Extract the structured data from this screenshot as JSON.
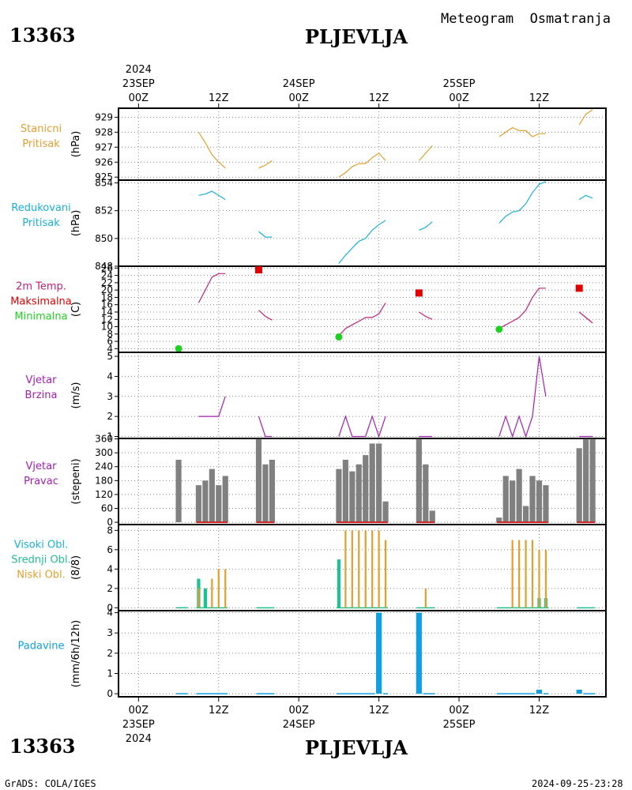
{
  "header": {
    "station_id": "13363",
    "station_name": "PLJEVLJA",
    "meteogram_title": "Meteogram  Osmatranja"
  },
  "footer": {
    "station_id": "13363",
    "station_name": "PLJEVLJA",
    "credit": "GrADS: COLA/IGES",
    "timestamp": "2024-09-25-23:28"
  },
  "colors": {
    "pressure": "#e0a030",
    "reduced": "#1ab0d8",
    "temp": "#c0207a",
    "max": "#e00000",
    "min": "#20d020",
    "wind": "#a020b0",
    "dir_bar": "#808080",
    "calm": "#d02020",
    "high_cloud": "#1ab0d8",
    "mid_cloud": "#20c090",
    "low_cloud": "#e0a030",
    "precip": "#10a0e0"
  },
  "time_axis": {
    "top": {
      "year": "2024",
      "labels": [
        {
          "t": 0,
          "day": "23SEP",
          "hour": "00Z"
        },
        {
          "t": 12,
          "hour": "12Z"
        },
        {
          "t": 24,
          "day": "24SEP",
          "hour": "00Z"
        },
        {
          "t": 36,
          "hour": "12Z"
        },
        {
          "t": 48,
          "day": "25SEP",
          "hour": "00Z"
        },
        {
          "t": 60,
          "hour": "12Z"
        }
      ]
    },
    "bottom": {
      "year": "2024",
      "labels": [
        {
          "t": 0,
          "day": "23SEP",
          "hour": "00Z"
        },
        {
          "t": 12,
          "hour": "12Z"
        },
        {
          "t": 24,
          "day": "24SEP",
          "hour": "00Z"
        },
        {
          "t": 36,
          "hour": "12Z"
        },
        {
          "t": 48,
          "day": "25SEP",
          "hour": "00Z"
        },
        {
          "t": 60,
          "hour": "12Z"
        }
      ]
    }
  },
  "chart_data": [
    {
      "type": "line",
      "id": "station_pressure",
      "label_lines": [
        "Stanicni",
        "Pritisak"
      ],
      "ylabel": "(hPa)",
      "ylim": [
        924.8,
        929.6
      ],
      "yticks": [
        925,
        926,
        927,
        928,
        929
      ],
      "x_unit": "hours since 23SEP 00Z",
      "segments": [
        [
          [
            9,
            928.0
          ],
          [
            10,
            927.3
          ],
          [
            11,
            926.5
          ],
          [
            12,
            926.0
          ],
          [
            13,
            925.6
          ]
        ],
        [
          [
            18,
            925.6
          ],
          [
            19,
            925.8
          ],
          [
            20,
            926.1
          ]
        ],
        [
          [
            30,
            925.0
          ],
          [
            31,
            925.3
          ],
          [
            32,
            925.7
          ],
          [
            33,
            925.9
          ],
          [
            34,
            925.9
          ],
          [
            35,
            926.3
          ],
          [
            36,
            926.6
          ],
          [
            37,
            926.1
          ]
        ],
        [
          [
            42,
            926.1
          ],
          [
            43,
            926.6
          ],
          [
            44,
            927.1
          ]
        ],
        [
          [
            54,
            927.7
          ],
          [
            55,
            928.0
          ],
          [
            56,
            928.3
          ],
          [
            57,
            928.1
          ],
          [
            58,
            928.1
          ],
          [
            59,
            927.7
          ],
          [
            60,
            927.9
          ],
          [
            61,
            927.9
          ]
        ],
        [
          [
            66,
            928.5
          ],
          [
            67,
            929.2
          ],
          [
            68,
            929.5
          ]
        ]
      ]
    },
    {
      "type": "line",
      "id": "reduced_pressure",
      "label_lines": [
        "Redukovani",
        "Pritisak"
      ],
      "ylabel": "(hPa)",
      "ylim": [
        848,
        854.2
      ],
      "yticks": [
        848,
        850,
        852,
        854
      ],
      "segments": [
        [
          [
            9,
            853.1
          ],
          [
            10,
            853.2
          ],
          [
            11,
            853.4
          ],
          [
            12,
            853.1
          ],
          [
            13,
            852.8
          ]
        ],
        [
          [
            18,
            850.5
          ],
          [
            19,
            850.1
          ],
          [
            20,
            850.1
          ]
        ],
        [
          [
            30,
            848.2
          ],
          [
            31,
            848.8
          ],
          [
            32,
            849.3
          ],
          [
            33,
            849.8
          ],
          [
            34,
            850.0
          ],
          [
            35,
            850.6
          ],
          [
            36,
            851.0
          ],
          [
            37,
            851.3
          ]
        ],
        [
          [
            42,
            850.6
          ],
          [
            43,
            850.8
          ],
          [
            44,
            851.2
          ]
        ],
        [
          [
            54,
            851.1
          ],
          [
            55,
            851.6
          ],
          [
            56,
            851.9
          ],
          [
            57,
            852.0
          ],
          [
            58,
            852.5
          ],
          [
            59,
            853.3
          ],
          [
            60,
            853.9
          ],
          [
            61,
            854.1
          ]
        ],
        [
          [
            66,
            852.8
          ],
          [
            67,
            853.1
          ],
          [
            68,
            852.9
          ]
        ]
      ]
    },
    {
      "type": "line",
      "id": "temperature",
      "label_lines": [
        "2m Temp.",
        "Maksimalna",
        "Minimalna"
      ],
      "ylabel": "(C)",
      "ylim": [
        3,
        26.5
      ],
      "yticks": [
        4,
        6,
        8,
        10,
        12,
        14,
        16,
        18,
        20,
        22,
        24,
        26
      ],
      "segments": [
        [
          [
            9,
            16.5
          ],
          [
            10,
            20.0
          ],
          [
            11,
            23.5
          ],
          [
            12,
            24.5
          ],
          [
            13,
            24.5
          ]
        ],
        [
          [
            18,
            14.5
          ],
          [
            19,
            12.8
          ],
          [
            20,
            11.8
          ]
        ],
        [
          [
            30,
            7.5
          ],
          [
            31,
            9.5
          ],
          [
            32,
            10.5
          ],
          [
            33,
            11.5
          ],
          [
            34,
            12.5
          ],
          [
            35,
            12.5
          ],
          [
            36,
            13.5
          ],
          [
            37,
            16.5
          ]
        ],
        [
          [
            42,
            14.0
          ],
          [
            43,
            12.8
          ],
          [
            44,
            12.0
          ]
        ],
        [
          [
            54,
            9.5
          ],
          [
            55,
            10.5
          ],
          [
            56,
            11.5
          ],
          [
            57,
            12.5
          ],
          [
            58,
            14.5
          ],
          [
            59,
            18.0
          ],
          [
            60,
            20.5
          ],
          [
            61,
            20.5
          ]
        ],
        [
          [
            66,
            14.0
          ],
          [
            67,
            12.5
          ],
          [
            68,
            11.0
          ]
        ]
      ],
      "max_points": [
        [
          18,
          25.5
        ],
        [
          42,
          19.2
        ],
        [
          66,
          20.5
        ]
      ],
      "min_points": [
        [
          6,
          4.0
        ],
        [
          30,
          7.2
        ],
        [
          54,
          9.3
        ]
      ]
    },
    {
      "type": "line",
      "id": "wind_speed",
      "label_lines": [
        "Vjetar",
        "Brzina"
      ],
      "ylabel": "(m/s)",
      "ylim": [
        0.9,
        5.2
      ],
      "yticks": [
        1,
        2,
        3,
        4,
        5
      ],
      "segments": [
        [
          [
            9,
            2
          ],
          [
            10,
            2
          ],
          [
            11,
            2
          ],
          [
            12,
            2
          ],
          [
            13,
            3
          ]
        ],
        [
          [
            18,
            2
          ],
          [
            19,
            1
          ],
          [
            20,
            1
          ]
        ],
        [
          [
            30,
            1
          ],
          [
            31,
            2
          ],
          [
            32,
            1
          ],
          [
            33,
            1
          ],
          [
            34,
            1
          ],
          [
            35,
            2
          ],
          [
            36,
            1
          ],
          [
            37,
            2
          ]
        ],
        [
          [
            42,
            1
          ],
          [
            43,
            1
          ],
          [
            44,
            1
          ]
        ],
        [
          [
            54,
            1
          ],
          [
            55,
            2
          ],
          [
            56,
            1
          ],
          [
            57,
            2
          ],
          [
            58,
            1
          ],
          [
            59,
            2
          ],
          [
            60,
            5
          ],
          [
            61,
            3
          ]
        ],
        [
          [
            66,
            1
          ],
          [
            67,
            1
          ],
          [
            68,
            1
          ]
        ]
      ]
    },
    {
      "type": "bar",
      "id": "wind_direction",
      "label_lines": [
        "Vjetar",
        "Pravac"
      ],
      "ylabel": "(stepeni)",
      "ylim": [
        -10,
        362
      ],
      "yticks": [
        0,
        60,
        120,
        180,
        240,
        300,
        360
      ],
      "bars": [
        [
          6,
          270
        ],
        [
          9,
          160
        ],
        [
          10,
          180
        ],
        [
          11,
          230
        ],
        [
          12,
          160
        ],
        [
          13,
          200
        ],
        [
          18,
          360
        ],
        [
          19,
          250
        ],
        [
          20,
          270
        ],
        [
          30,
          230
        ],
        [
          31,
          270
        ],
        [
          32,
          220
        ],
        [
          33,
          250
        ],
        [
          34,
          290
        ],
        [
          35,
          340
        ],
        [
          36,
          340
        ],
        [
          37,
          90
        ],
        [
          42,
          360
        ],
        [
          43,
          250
        ],
        [
          44,
          50
        ],
        [
          54,
          20
        ],
        [
          55,
          200
        ],
        [
          56,
          180
        ],
        [
          57,
          230
        ],
        [
          58,
          70
        ],
        [
          59,
          200
        ],
        [
          60,
          180
        ],
        [
          61,
          160
        ],
        [
          66,
          320
        ],
        [
          67,
          360
        ],
        [
          68,
          360
        ]
      ],
      "calm_segments": [
        [
          9,
          13
        ],
        [
          18,
          20
        ],
        [
          30,
          37
        ],
        [
          42,
          44
        ],
        [
          54,
          61
        ],
        [
          66,
          68
        ]
      ]
    },
    {
      "type": "bar",
      "id": "cloud_cover",
      "label_lines": [
        "Visoki Obl.",
        "Srednji Obl.",
        "Niski Obl."
      ],
      "ylabel": "(8/8)",
      "ylim": [
        -0.3,
        8.6
      ],
      "yticks": [
        0,
        2,
        4,
        6,
        8
      ],
      "series": [
        {
          "name": "Visoki Obl.",
          "values": []
        },
        {
          "name": "Srednji Obl.",
          "values": [
            [
              9,
              3
            ],
            [
              10,
              2
            ],
            [
              30,
              5
            ],
            [
              60,
              1
            ],
            [
              61,
              1
            ]
          ]
        },
        {
          "name": "Niski Obl.",
          "values": [
            [
              9,
              2
            ],
            [
              11,
              3
            ],
            [
              12,
              4
            ],
            [
              13,
              4
            ],
            [
              31,
              8
            ],
            [
              32,
              8
            ],
            [
              33,
              8
            ],
            [
              34,
              8
            ],
            [
              35,
              8
            ],
            [
              36,
              8
            ],
            [
              37,
              7
            ],
            [
              43,
              2
            ],
            [
              56,
              7
            ],
            [
              57,
              7
            ],
            [
              58,
              7
            ],
            [
              59,
              7
            ],
            [
              60,
              6
            ],
            [
              61,
              6
            ]
          ]
        }
      ],
      "trace_segments": [
        [
          6,
          7
        ],
        [
          9,
          13
        ],
        [
          18,
          20
        ],
        [
          30,
          37
        ],
        [
          42,
          44
        ],
        [
          54,
          61
        ],
        [
          66,
          68
        ]
      ]
    },
    {
      "type": "bar",
      "id": "precipitation",
      "label_lines": [
        "Padavine"
      ],
      "ylabel": "(mm/6h/12h)",
      "ylim": [
        -0.15,
        4.1
      ],
      "yticks": [
        0,
        1,
        2,
        3,
        4
      ],
      "bars": [
        [
          36,
          4
        ],
        [
          42,
          4
        ],
        [
          60,
          0.2
        ],
        [
          66,
          0.2
        ]
      ],
      "trace_segments": [
        [
          6,
          7
        ],
        [
          9,
          13
        ],
        [
          18,
          20
        ],
        [
          30,
          35
        ],
        [
          37,
          37
        ],
        [
          43,
          44
        ],
        [
          54,
          59
        ],
        [
          61,
          61
        ],
        [
          67,
          68
        ]
      ]
    }
  ]
}
